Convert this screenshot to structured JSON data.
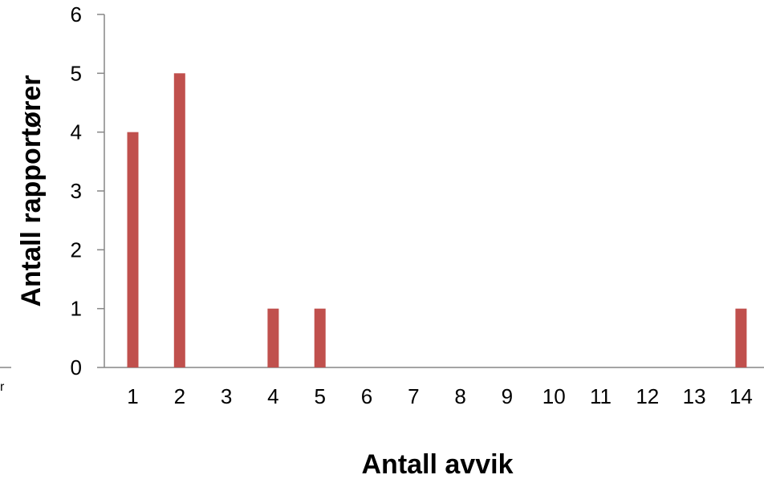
{
  "chart_data": {
    "type": "bar",
    "categories": [
      "1",
      "2",
      "3",
      "4",
      "5",
      "6",
      "7",
      "8",
      "9",
      "10",
      "11",
      "12",
      "13",
      "14"
    ],
    "values": [
      4,
      5,
      0,
      1,
      1,
      0,
      0,
      0,
      0,
      0,
      0,
      0,
      0,
      1
    ],
    "xlabel": "Antall avvik",
    "ylabel": "Antall rapportører",
    "ylim": [
      0,
      6
    ],
    "yticks": [
      0,
      1,
      2,
      3,
      4,
      5,
      6
    ],
    "grid": false,
    "legend": "none",
    "bar_color": "#c0504d"
  },
  "fragment": {
    "stray_text": "r"
  }
}
